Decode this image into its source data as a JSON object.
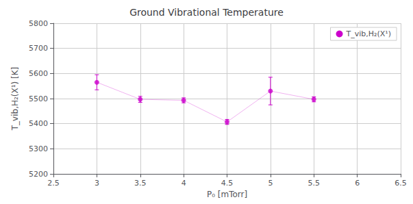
{
  "chart_data": {
    "type": "line",
    "title": "Ground Vibrational Temperature",
    "x_label": "P₀ [mTorr]",
    "y_label": "T_vib,H₂(X¹) [K]",
    "x": [
      3.0,
      3.5,
      4.0,
      4.5,
      5.0,
      5.5
    ],
    "series": [
      {
        "name": "T_vib,H₂(X¹)",
        "color": "#CC00CC",
        "marker": "circle",
        "values": [
          5565,
          5497,
          5493,
          5407,
          5530,
          5497
        ],
        "yerr": [
          30,
          12,
          10,
          10,
          55,
          10
        ]
      }
    ],
    "xlim": [
      2.5,
      6.5
    ],
    "ylim": [
      5200,
      5800
    ],
    "xticks": [
      2.5,
      3.0,
      3.5,
      4.0,
      4.5,
      5.0,
      5.5,
      6.0,
      6.5
    ],
    "yticks": [
      5200,
      5300,
      5400,
      5500,
      5600,
      5700,
      5800
    ],
    "grid": true,
    "grid_color": "#cccccc",
    "background_color": "#ffffff",
    "legend": "upper right"
  }
}
